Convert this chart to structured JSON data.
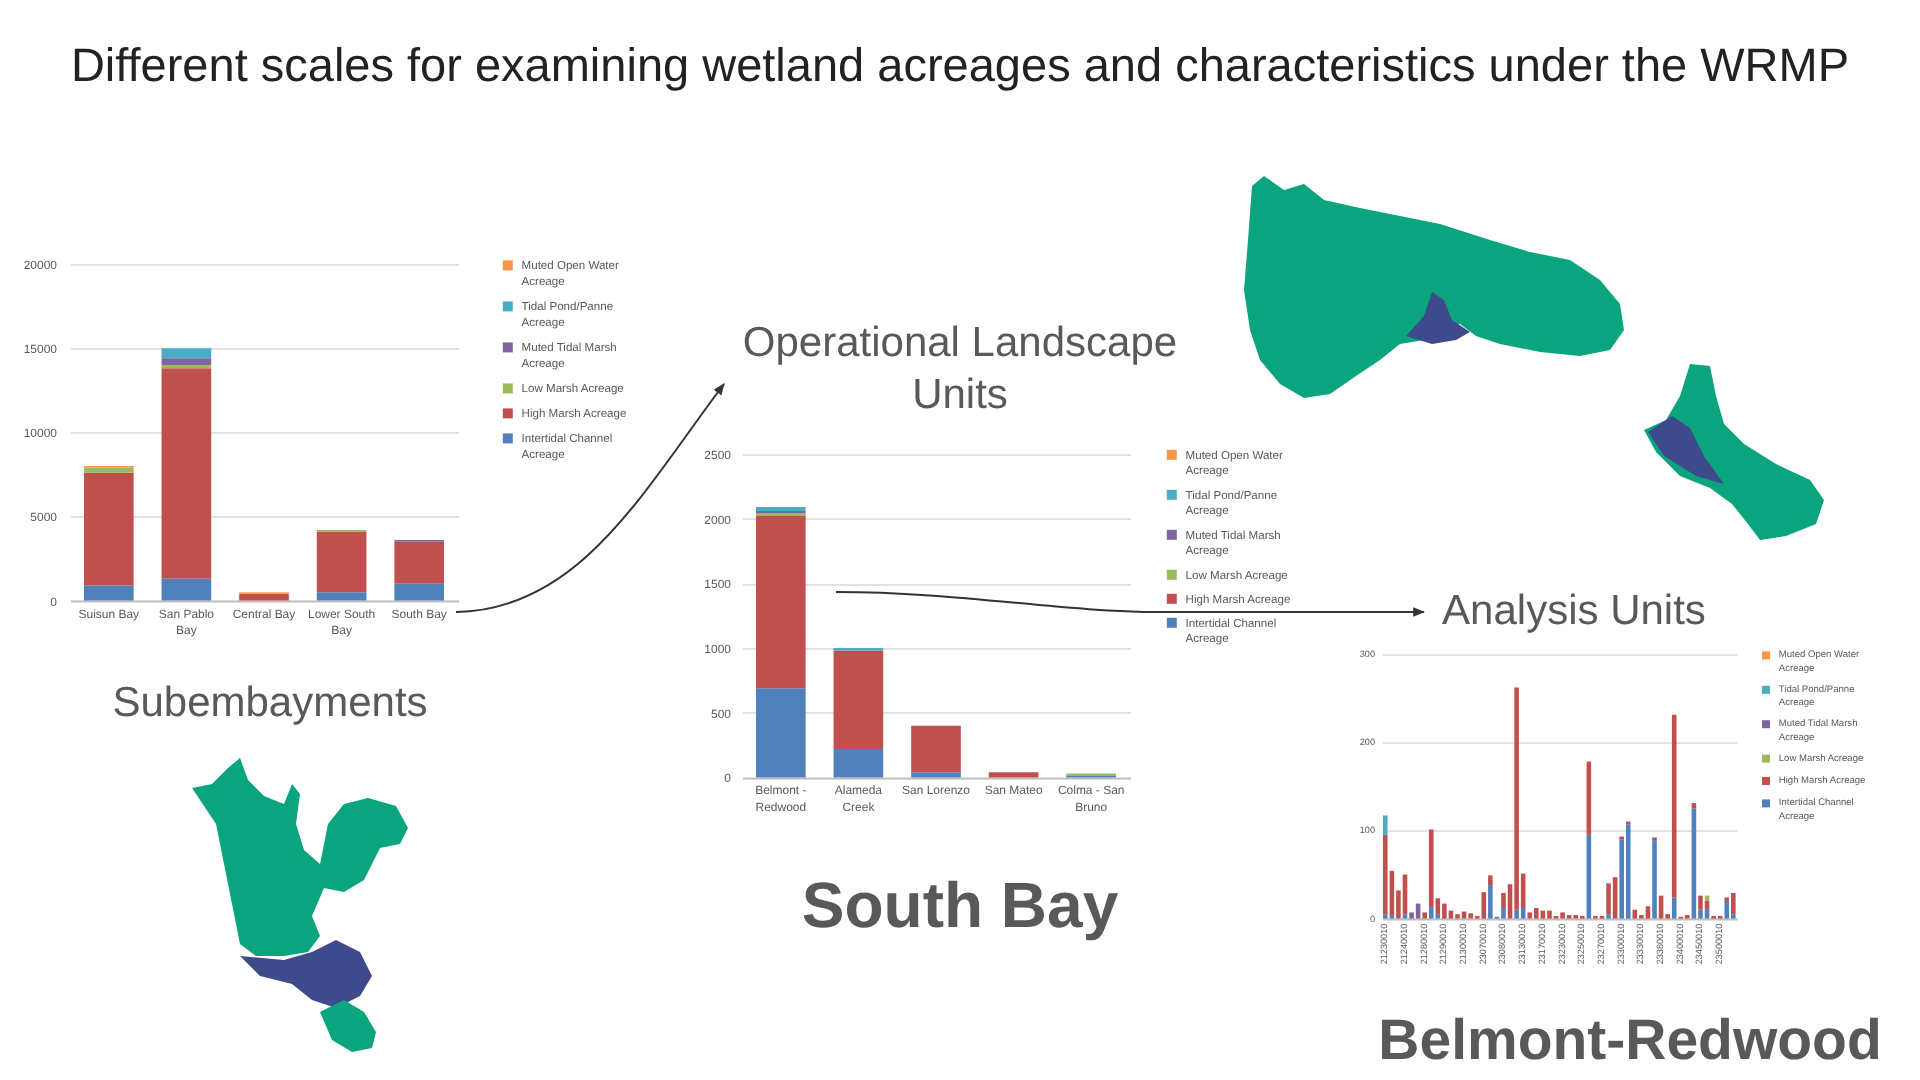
{
  "chart_data": [
    {
      "type": "bar",
      "title": "Subembayments",
      "annotations": [
        "Different scales for examining wetland acreages and characteristics under the WRMP"
      ],
      "categories": [
        "Suisun Bay",
        "San Pablo Bay",
        "Central Bay",
        "Lower South Bay",
        "South Bay"
      ],
      "stacked": true,
      "series": [
        {
          "name": "Intertidal Channel Acreage",
          "color": "#4f81bd",
          "values": [
            900,
            1300,
            null,
            500,
            1000
          ]
        },
        {
          "name": "High Marsh Acreage",
          "color": "#c0504d",
          "values": [
            6700,
            12500,
            400,
            3600,
            2500
          ]
        },
        {
          "name": "Low Marsh Acreage",
          "color": "#9bbb59",
          "values": [
            300,
            200,
            null,
            100,
            null
          ]
        },
        {
          "name": "Muted Tidal Marsh Acreage",
          "color": "#8064a2",
          "values": [
            null,
            400,
            null,
            null,
            100
          ]
        },
        {
          "name": "Tidal Pond/Panne Acreage",
          "color": "#4bacc6",
          "values": [
            null,
            600,
            null,
            null,
            null
          ]
        },
        {
          "name": "Muted Open Water Acreage",
          "color": "#f79646",
          "values": [
            100,
            null,
            100,
            null,
            null
          ]
        }
      ],
      "ylim": [
        0,
        20000
      ],
      "yticks": [
        0,
        5000,
        10000,
        15000,
        20000
      ],
      "grid": "y",
      "legend": "top right"
    },
    {
      "type": "bar",
      "title": "Operational Landscape Units",
      "subtitle": "South Bay",
      "categories": [
        "Belmont - Redwood",
        "Alameda Creek",
        "San Lorenzo",
        "San Mateo",
        "Colma - San Bruno"
      ],
      "stacked": true,
      "series": [
        {
          "name": "Intertidal Channel Acreage",
          "color": "#4f81bd",
          "values": [
            690,
            220,
            40,
            null,
            10
          ]
        },
        {
          "name": "High Marsh Acreage",
          "color": "#c0504d",
          "values": [
            1330,
            760,
            360,
            40,
            null
          ]
        },
        {
          "name": "Low Marsh Acreage",
          "color": "#9bbb59",
          "values": [
            20,
            null,
            null,
            null,
            20
          ]
        },
        {
          "name": "Muted Tidal Marsh Acreage",
          "color": "#8064a2",
          "values": [
            20,
            null,
            null,
            null,
            null
          ]
        },
        {
          "name": "Tidal Pond/Panne Acreage",
          "color": "#4bacc6",
          "values": [
            30,
            20,
            null,
            null,
            null
          ]
        },
        {
          "name": "Muted Open Water Acreage",
          "color": "#f79646",
          "values": [
            null,
            null,
            null,
            null,
            null
          ]
        }
      ],
      "ylim": [
        0,
        2500
      ],
      "yticks": [
        0,
        500,
        1000,
        1500,
        2000,
        2500
      ],
      "grid": "y",
      "legend": "top right"
    },
    {
      "type": "bar",
      "title": "Analysis Units",
      "subtitle": "Belmont-Redwood",
      "categories": [
        "21230010",
        null,
        null,
        "21240010",
        null,
        null,
        "21280010",
        null,
        null,
        "21290010",
        null,
        null,
        "21300010",
        null,
        null,
        "23070010",
        null,
        null,
        "23080010",
        null,
        null,
        "23130010",
        null,
        null,
        "23170010",
        null,
        null,
        "23230010",
        null,
        null,
        "23250010",
        null,
        null,
        "23270010",
        null,
        null,
        "23300010",
        null,
        null,
        "23330010",
        null,
        null,
        "23380010",
        null,
        null,
        "23400010",
        null,
        null,
        "23450010",
        null,
        null,
        "23500010",
        null,
        null
      ],
      "stacked": true,
      "series": [
        {
          "name": "Intertidal Channel Acreage",
          "color": "#4f81bd",
          "values": [
            5,
            3,
            null,
            5,
            null,
            null,
            null,
            13,
            5,
            null,
            null,
            null,
            null,
            null,
            null,
            null,
            38,
            2,
            12,
            null,
            10,
            12,
            null,
            null,
            null,
            null,
            null,
            null,
            null,
            null,
            null,
            95,
            null,
            null,
            5,
            null,
            90,
            107,
            null,
            null,
            null,
            89,
            null,
            null,
            24,
            null,
            null,
            125,
            10,
            11,
            null,
            null,
            20,
            5
          ]
        },
        {
          "name": "High Marsh Acreage",
          "color": "#c0504d",
          "values": [
            90,
            51,
            32,
            45,
            null,
            null,
            7,
            88,
            18,
            17,
            9,
            5,
            8,
            6,
            3,
            30,
            11,
            null,
            17,
            39,
            252,
            39,
            7,
            12,
            9,
            9,
            3,
            7,
            4,
            4,
            3,
            83,
            3,
            3,
            35,
            47,
            3,
            3,
            10,
            4,
            14,
            3,
            26,
            5,
            207,
            2,
            4,
            6,
            16,
            9,
            3,
            3,
            4,
            24
          ]
        },
        {
          "name": "Low Marsh Acreage",
          "color": "#9bbb59",
          "values": [
            null,
            null,
            null,
            null,
            null,
            null,
            null,
            null,
            null,
            null,
            null,
            null,
            null,
            null,
            null,
            null,
            null,
            null,
            null,
            null,
            null,
            null,
            null,
            null,
            null,
            null,
            null,
            null,
            null,
            null,
            null,
            null,
            null,
            null,
            null,
            null,
            null,
            null,
            null,
            null,
            null,
            null,
            null,
            null,
            null,
            null,
            null,
            null,
            null,
            6,
            null,
            null,
            null,
            null
          ]
        },
        {
          "name": "Muted Tidal Marsh Acreage",
          "color": "#8064a2",
          "values": [
            null,
            null,
            null,
            null,
            7,
            17,
            null,
            null,
            null,
            null,
            null,
            null,
            null,
            null,
            null,
            null,
            null,
            null,
            null,
            null,
            null,
            null,
            null,
            null,
            null,
            null,
            null,
            null,
            null,
            null,
            null,
            null,
            null,
            null,
            null,
            null,
            null,
            null,
            null,
            null,
            null,
            null,
            null,
            null,
            null,
            null,
            null,
            null,
            null,
            null,
            null,
            null,
            null,
            null
          ]
        },
        {
          "name": "Tidal Pond/Panne Acreage",
          "color": "#4bacc6",
          "values": [
            22,
            null,
            null,
            null,
            null,
            null,
            null,
            null,
            null,
            null,
            null,
            null,
            null,
            null,
            null,
            null,
            null,
            null,
            null,
            null,
            null,
            null,
            null,
            null,
            null,
            null,
            null,
            null,
            null,
            null,
            null,
            null,
            null,
            null,
            null,
            null,
            null,
            null,
            null,
            null,
            null,
            null,
            null,
            null,
            null,
            null,
            null,
            null,
            null,
            null,
            null,
            null,
            null,
            null
          ]
        },
        {
          "name": "Muted Open Water Acreage",
          "color": "#f79646",
          "values": [
            null,
            null,
            null,
            null,
            null,
            null,
            null,
            null,
            null,
            null,
            null,
            null,
            null,
            null,
            null,
            null,
            null,
            null,
            null,
            null,
            null,
            null,
            null,
            null,
            null,
            null,
            null,
            null,
            null,
            null,
            null,
            null,
            null,
            null,
            null,
            null,
            null,
            null,
            null,
            null,
            null,
            null,
            null,
            null,
            null,
            null,
            null,
            null,
            null,
            null,
            null,
            null,
            null,
            null
          ]
        }
      ],
      "ylim": [
        0,
        300
      ],
      "yticks": [
        0,
        100,
        200,
        300
      ],
      "grid": "y",
      "legend": "top right"
    }
  ]
}
